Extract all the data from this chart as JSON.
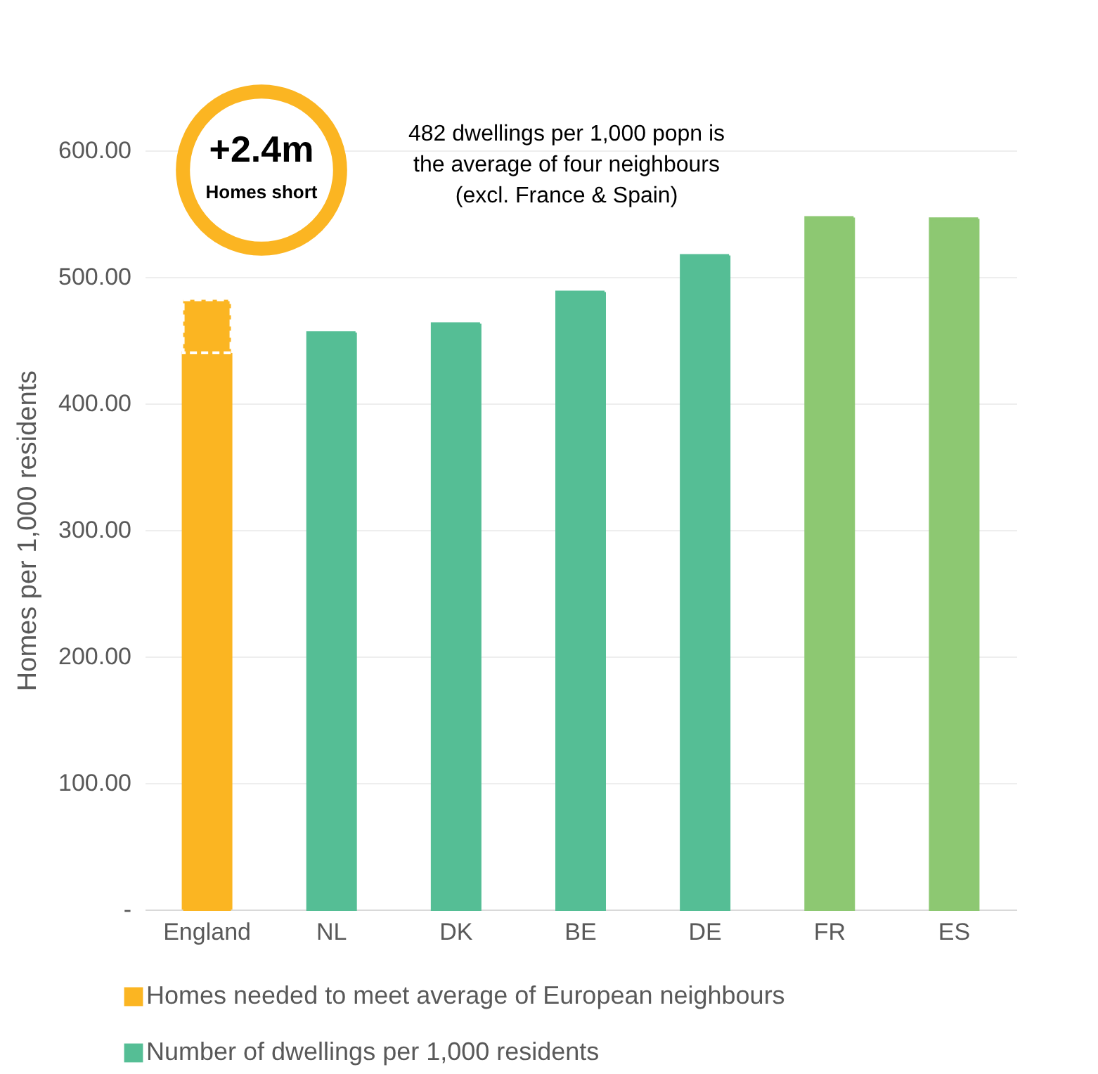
{
  "chart_data": {
    "type": "bar",
    "stacked": true,
    "ylabel": "Homes per 1,000 residents",
    "categories": [
      "England",
      "NL",
      "DK",
      "BE",
      "DE",
      "FR",
      "ES"
    ],
    "series": [
      {
        "name": "Number of dwellings per 1,000 residents",
        "color": "#55be95",
        "colors": [
          "#fbb522",
          "#55be95",
          "#55be95",
          "#55be95",
          "#55be95",
          "#8dc872",
          "#8dc872"
        ],
        "values": [
          440,
          456,
          463,
          488,
          517,
          547,
          546
        ]
      },
      {
        "name": "Homes needed to meet average of European neighbours",
        "color": "#fbb522",
        "values": [
          42,
          null,
          null,
          null,
          null,
          null,
          null
        ]
      }
    ],
    "ylim": [
      0,
      600
    ],
    "yticks": [
      {
        "value": 0,
        "label": "-"
      },
      {
        "value": 100,
        "label": "100.00"
      },
      {
        "value": 200,
        "label": "200.00"
      },
      {
        "value": 300,
        "label": "300.00"
      },
      {
        "value": 400,
        "label": "400.00"
      },
      {
        "value": 500,
        "label": "500.00"
      },
      {
        "value": 600,
        "label": "600.00"
      }
    ],
    "grid": "y",
    "legend": "bottom",
    "annotations": [
      "+2.4m",
      "Homes short",
      "482 dwellings per 1,000 popn is\nthe average of four neighbours\n(excl. France & Spain)"
    ]
  }
}
